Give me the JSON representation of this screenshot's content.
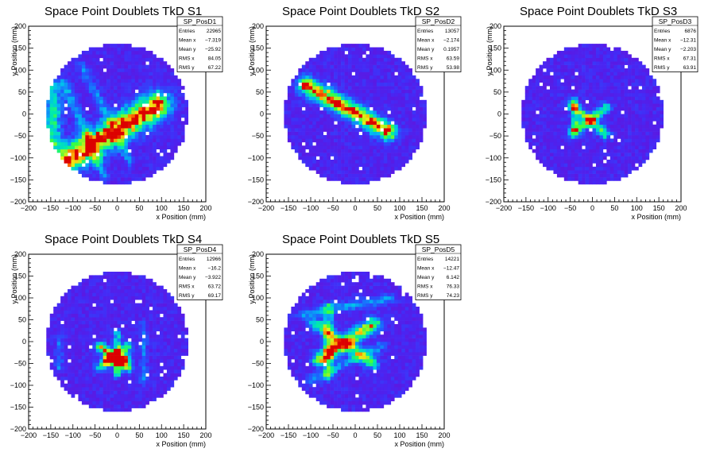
{
  "chart_data": [
    {
      "type": "heatmap",
      "title": "Space Point Doublets TkD S1",
      "xlabel": "x Position (mm)",
      "ylabel": "y Position (mm)",
      "xlim": [
        -200,
        200
      ],
      "ylim": [
        -200,
        200
      ],
      "xticks": [
        -200,
        -150,
        -100,
        -50,
        0,
        50,
        100,
        150,
        200
      ],
      "yticks": [
        -200,
        -150,
        -100,
        -50,
        0,
        50,
        100,
        150,
        200
      ],
      "detector_radius_mm": 160,
      "stats": {
        "name": "SP_PosD1",
        "rows": [
          {
            "label": "Entries",
            "value": "22965"
          },
          {
            "label": "Mean x",
            "value": "−7.319"
          },
          {
            "label": "Mean y",
            "value": "−25.92"
          },
          {
            "label": "RMS x",
            "value": "84.05"
          },
          {
            "label": "RMS y",
            "value": "67.22"
          }
        ]
      },
      "features": [
        {
          "x1": -120,
          "y1": -110,
          "x2": 90,
          "y2": 20,
          "intensity": 0.95,
          "width": 22
        },
        {
          "x1": -145,
          "y1": -70,
          "x2": -145,
          "y2": 60,
          "intensity": 0.5,
          "width": 14
        },
        {
          "x1": -120,
          "y1": 70,
          "x2": -30,
          "y2": -140,
          "intensity": 0.35,
          "width": 8
        },
        {
          "x1": -80,
          "y1": 110,
          "x2": 30,
          "y2": -110,
          "intensity": 0.25,
          "width": 8
        }
      ]
    },
    {
      "type": "heatmap",
      "title": "Space Point Doublets TkD S2",
      "xlabel": "x Position (mm)",
      "ylabel": "y Position (mm)",
      "xlim": [
        -200,
        200
      ],
      "ylim": [
        -200,
        200
      ],
      "xticks": [
        -200,
        -150,
        -100,
        -50,
        0,
        50,
        100,
        150,
        200
      ],
      "yticks": [
        -200,
        -150,
        -100,
        -50,
        0,
        50,
        100,
        150,
        200
      ],
      "detector_radius_mm": 160,
      "stats": {
        "name": "SP_PosD2",
        "rows": [
          {
            "label": "Entries",
            "value": "13057"
          },
          {
            "label": "Mean x",
            "value": "−2.174"
          },
          {
            "label": "Mean y",
            "value": "0.1957"
          },
          {
            "label": "RMS x",
            "value": "63.59"
          },
          {
            "label": "RMS y",
            "value": "53.98"
          }
        ]
      },
      "features": [
        {
          "x1": -110,
          "y1": 65,
          "x2": 75,
          "y2": -40,
          "intensity": 0.95,
          "width": 14
        }
      ]
    },
    {
      "type": "heatmap",
      "title": "Space Point Doublets TkD S3",
      "xlabel": "x Position (mm)",
      "ylabel": "y Position (mm)",
      "xlim": [
        -200,
        200
      ],
      "ylim": [
        -200,
        200
      ],
      "xticks": [
        -200,
        -150,
        -100,
        -50,
        0,
        50,
        100,
        150,
        200
      ],
      "yticks": [
        -200,
        -150,
        -100,
        -50,
        0,
        50,
        100,
        150,
        200
      ],
      "detector_radius_mm": 160,
      "stats": {
        "name": "SP_PosD3",
        "rows": [
          {
            "label": "Entries",
            "value": "6876"
          },
          {
            "label": "Mean x",
            "value": "−12.31"
          },
          {
            "label": "Mean y",
            "value": "−2.203"
          },
          {
            "label": "RMS x",
            "value": "67.31"
          },
          {
            "label": "RMS y",
            "value": "63.91"
          }
        ]
      },
      "features": [
        {
          "x1": -45,
          "y1": -45,
          "x2": 30,
          "y2": 15,
          "intensity": 0.6,
          "width": 8
        },
        {
          "x1": -45,
          "y1": 20,
          "x2": 30,
          "y2": -45,
          "intensity": 0.55,
          "width": 8
        },
        {
          "x1": -40,
          "y1": -35,
          "x2": -40,
          "y2": 30,
          "intensity": 0.5,
          "width": 6
        }
      ]
    },
    {
      "type": "heatmap",
      "title": "Space Point Doublets TkD S4",
      "xlabel": "x Position (mm)",
      "ylabel": "y Position (mm)",
      "xlim": [
        -200,
        200
      ],
      "ylim": [
        -200,
        200
      ],
      "xticks": [
        -200,
        -150,
        -100,
        -50,
        0,
        50,
        100,
        150,
        200
      ],
      "yticks": [
        -200,
        -150,
        -100,
        -50,
        0,
        50,
        100,
        150,
        200
      ],
      "detector_radius_mm": 160,
      "stats": {
        "name": "SP_PosD4",
        "rows": [
          {
            "label": "Entries",
            "value": "12966"
          },
          {
            "label": "Mean x",
            "value": "−16.2"
          },
          {
            "label": "Mean y",
            "value": "−3.922"
          },
          {
            "label": "RMS x",
            "value": "63.72"
          },
          {
            "label": "RMS y",
            "value": "69.17"
          }
        ]
      },
      "features": [
        {
          "x1": -40,
          "y1": -10,
          "x2": 25,
          "y2": -60,
          "intensity": 0.7,
          "width": 8
        },
        {
          "x1": -40,
          "y1": -60,
          "x2": 25,
          "y2": -10,
          "intensity": 0.6,
          "width": 8
        },
        {
          "x1": 0,
          "y1": -75,
          "x2": 0,
          "y2": 20,
          "intensity": 0.55,
          "width": 6
        },
        {
          "x1": -20,
          "y1": -40,
          "x2": 20,
          "y2": -40,
          "intensity": 0.8,
          "width": 8
        },
        {
          "x1": -130,
          "y1": 10,
          "x2": -130,
          "y2": -60,
          "intensity": 0.25,
          "width": 6
        },
        {
          "x1": 60,
          "y1": 40,
          "x2": 60,
          "y2": -90,
          "intensity": 0.25,
          "width": 6
        }
      ]
    },
    {
      "type": "heatmap",
      "title": "Space Point Doublets TkD S5",
      "xlabel": "x Position (mm)",
      "ylabel": "y Position (mm)",
      "xlim": [
        -200,
        200
      ],
      "ylim": [
        -200,
        200
      ],
      "xticks": [
        -200,
        -150,
        -100,
        -50,
        0,
        50,
        100,
        150,
        200
      ],
      "yticks": [
        -200,
        -150,
        -100,
        -50,
        0,
        50,
        100,
        150,
        200
      ],
      "detector_radius_mm": 160,
      "stats": {
        "name": "SP_PosD5",
        "rows": [
          {
            "label": "Entries",
            "value": "14221"
          },
          {
            "label": "Mean x",
            "value": "−12.47"
          },
          {
            "label": "Mean y",
            "value": "6.142"
          },
          {
            "label": "RMS x",
            "value": "76.33"
          },
          {
            "label": "RMS y",
            "value": "74.23"
          }
        ]
      },
      "features": [
        {
          "x1": -80,
          "y1": -40,
          "x2": 40,
          "y2": 40,
          "intensity": 0.75,
          "width": 12
        },
        {
          "x1": -90,
          "y1": 40,
          "x2": 40,
          "y2": -50,
          "intensity": 0.55,
          "width": 10
        },
        {
          "x1": -60,
          "y1": 80,
          "x2": -60,
          "y2": -80,
          "intensity": 0.4,
          "width": 8
        },
        {
          "x1": -120,
          "y1": 60,
          "x2": 80,
          "y2": 100,
          "intensity": 0.3,
          "width": 8
        },
        {
          "x1": -100,
          "y1": -90,
          "x2": 60,
          "y2": -10,
          "intensity": 0.3,
          "width": 8
        }
      ]
    }
  ]
}
